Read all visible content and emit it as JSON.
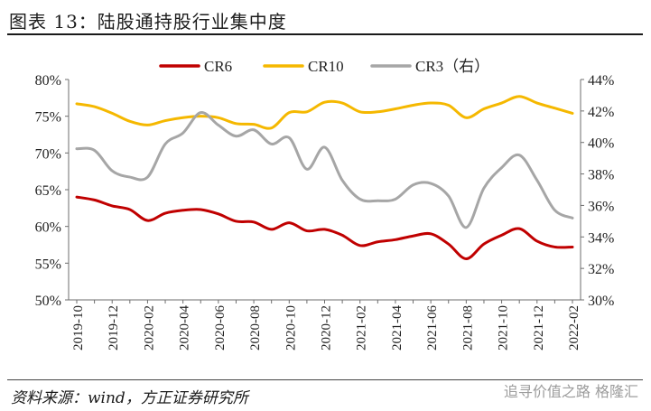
{
  "figure": {
    "title": "图表 13：陆股通持股行业集中度",
    "source": "资料来源：wind，方正证券研究所",
    "watermark": "追寻价值之路 格隆汇"
  },
  "chart_data": {
    "type": "line",
    "x": [
      "2019-10",
      "2019-11",
      "2019-12",
      "2020-01",
      "2020-02",
      "2020-03",
      "2020-04",
      "2020-05",
      "2020-06",
      "2020-07",
      "2020-08",
      "2020-09",
      "2020-10",
      "2020-11",
      "2020-12",
      "2021-01",
      "2021-02",
      "2021-03",
      "2021-04",
      "2021-05",
      "2021-06",
      "2021-07",
      "2021-08",
      "2021-09",
      "2021-10",
      "2021-11",
      "2021-12",
      "2022-01",
      "2022-02"
    ],
    "x_tick_labels": [
      "2019-10",
      "2019-12",
      "2020-02",
      "2020-04",
      "2020-06",
      "2020-08",
      "2020-10",
      "2020-12",
      "2021-02",
      "2021-04",
      "2021-06",
      "2021-08",
      "2021-10",
      "2021-12",
      "2022-02"
    ],
    "left_axis": {
      "ylim": [
        50,
        80
      ],
      "ticks": [
        "50%",
        "55%",
        "60%",
        "65%",
        "70%",
        "75%",
        "80%"
      ]
    },
    "right_axis": {
      "ylim": [
        30,
        44
      ],
      "ticks": [
        "30%",
        "32%",
        "34%",
        "36%",
        "38%",
        "40%",
        "42%",
        "44%"
      ]
    },
    "grid": false,
    "legend_position": "top",
    "series": [
      {
        "name": "CR6",
        "axis": "left",
        "color": "#c00000",
        "values": [
          64.0,
          63.6,
          62.8,
          62.3,
          60.8,
          61.8,
          62.2,
          62.3,
          61.7,
          60.7,
          60.6,
          59.6,
          60.5,
          59.4,
          59.6,
          58.8,
          57.4,
          57.9,
          58.2,
          58.7,
          59.0,
          57.6,
          55.6,
          57.6,
          58.8,
          59.7,
          58.0,
          57.2,
          57.2
        ]
      },
      {
        "name": "CR10",
        "axis": "left",
        "color": "#f5b800",
        "values": [
          76.7,
          76.3,
          75.4,
          74.3,
          73.8,
          74.4,
          74.8,
          75.0,
          74.8,
          74.0,
          73.9,
          73.4,
          75.5,
          75.6,
          76.9,
          76.8,
          75.6,
          75.6,
          76.0,
          76.5,
          76.8,
          76.5,
          74.8,
          76.0,
          76.8,
          77.7,
          76.8,
          76.1,
          75.4
        ]
      },
      {
        "name": "CR3（右）",
        "axis": "right",
        "color": "#a6a6a6",
        "values": [
          39.6,
          39.5,
          38.2,
          37.8,
          37.8,
          39.9,
          40.6,
          41.9,
          41.1,
          40.4,
          40.8,
          39.9,
          40.3,
          38.3,
          39.7,
          37.6,
          36.4,
          36.3,
          36.4,
          37.3,
          37.4,
          36.6,
          34.6,
          37.1,
          38.4,
          39.2,
          37.6,
          35.7,
          35.2
        ]
      }
    ]
  }
}
